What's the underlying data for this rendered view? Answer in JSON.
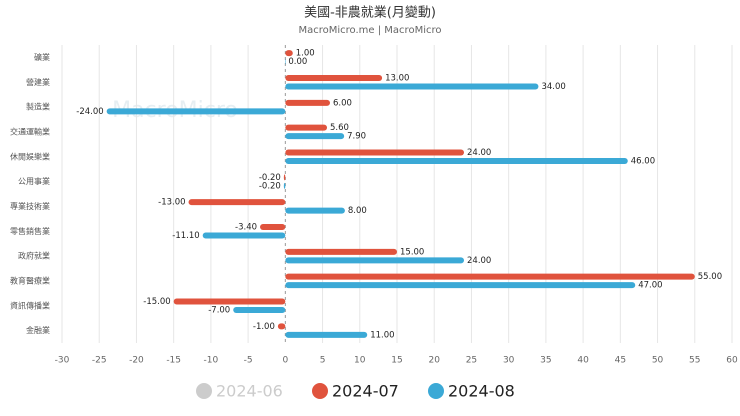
{
  "chart_data": {
    "type": "hbar",
    "title": "美國-非農就業(月變動)",
    "subtitle": "MacroMicro.me | MacroMicro",
    "watermark": "MacroMicro",
    "categories": [
      "礦業",
      "營建業",
      "製造業",
      "交通運輸業",
      "休閒娛樂業",
      "公用事業",
      "專業技術業",
      "零售銷售業",
      "政府就業",
      "教育醫療業",
      "資訊傳播業",
      "金融業"
    ],
    "series": [
      {
        "name": "2024-06",
        "color": "#cccccc",
        "visible": false,
        "values": [
          null,
          null,
          null,
          null,
          null,
          null,
          null,
          null,
          null,
          null,
          null,
          null
        ]
      },
      {
        "name": "2024-07",
        "color": "#e0533d",
        "visible": true,
        "values": [
          1,
          13,
          6,
          5.6,
          24,
          -0.2,
          -13,
          -3.4,
          15,
          55,
          -15,
          -1
        ],
        "value_labels": [
          "1.00",
          "13.00",
          "6.00",
          "5.60",
          "24.00",
          "-0.20",
          "-13.00",
          "-3.40",
          "15.00",
          "55.00",
          "-15.00",
          "-1.00"
        ]
      },
      {
        "name": "2024-08",
        "color": "#3ba9d6",
        "visible": true,
        "values": [
          0,
          34,
          -24,
          7.9,
          46,
          -0.2,
          8,
          -11.1,
          24,
          47,
          -7,
          11
        ],
        "value_labels": [
          "0.00",
          "34.00",
          "-24.00",
          "7.90",
          "46.00",
          "-0.20",
          "8.00",
          "-11.10",
          "24.00",
          "47.00",
          "-7.00",
          "11.00"
        ]
      }
    ],
    "xlim": [
      -30,
      60
    ],
    "xticks": [
      -30,
      -25,
      -20,
      -15,
      -10,
      -5,
      0,
      5,
      10,
      15,
      20,
      25,
      30,
      35,
      40,
      45,
      50,
      55,
      60
    ],
    "grid": true
  }
}
